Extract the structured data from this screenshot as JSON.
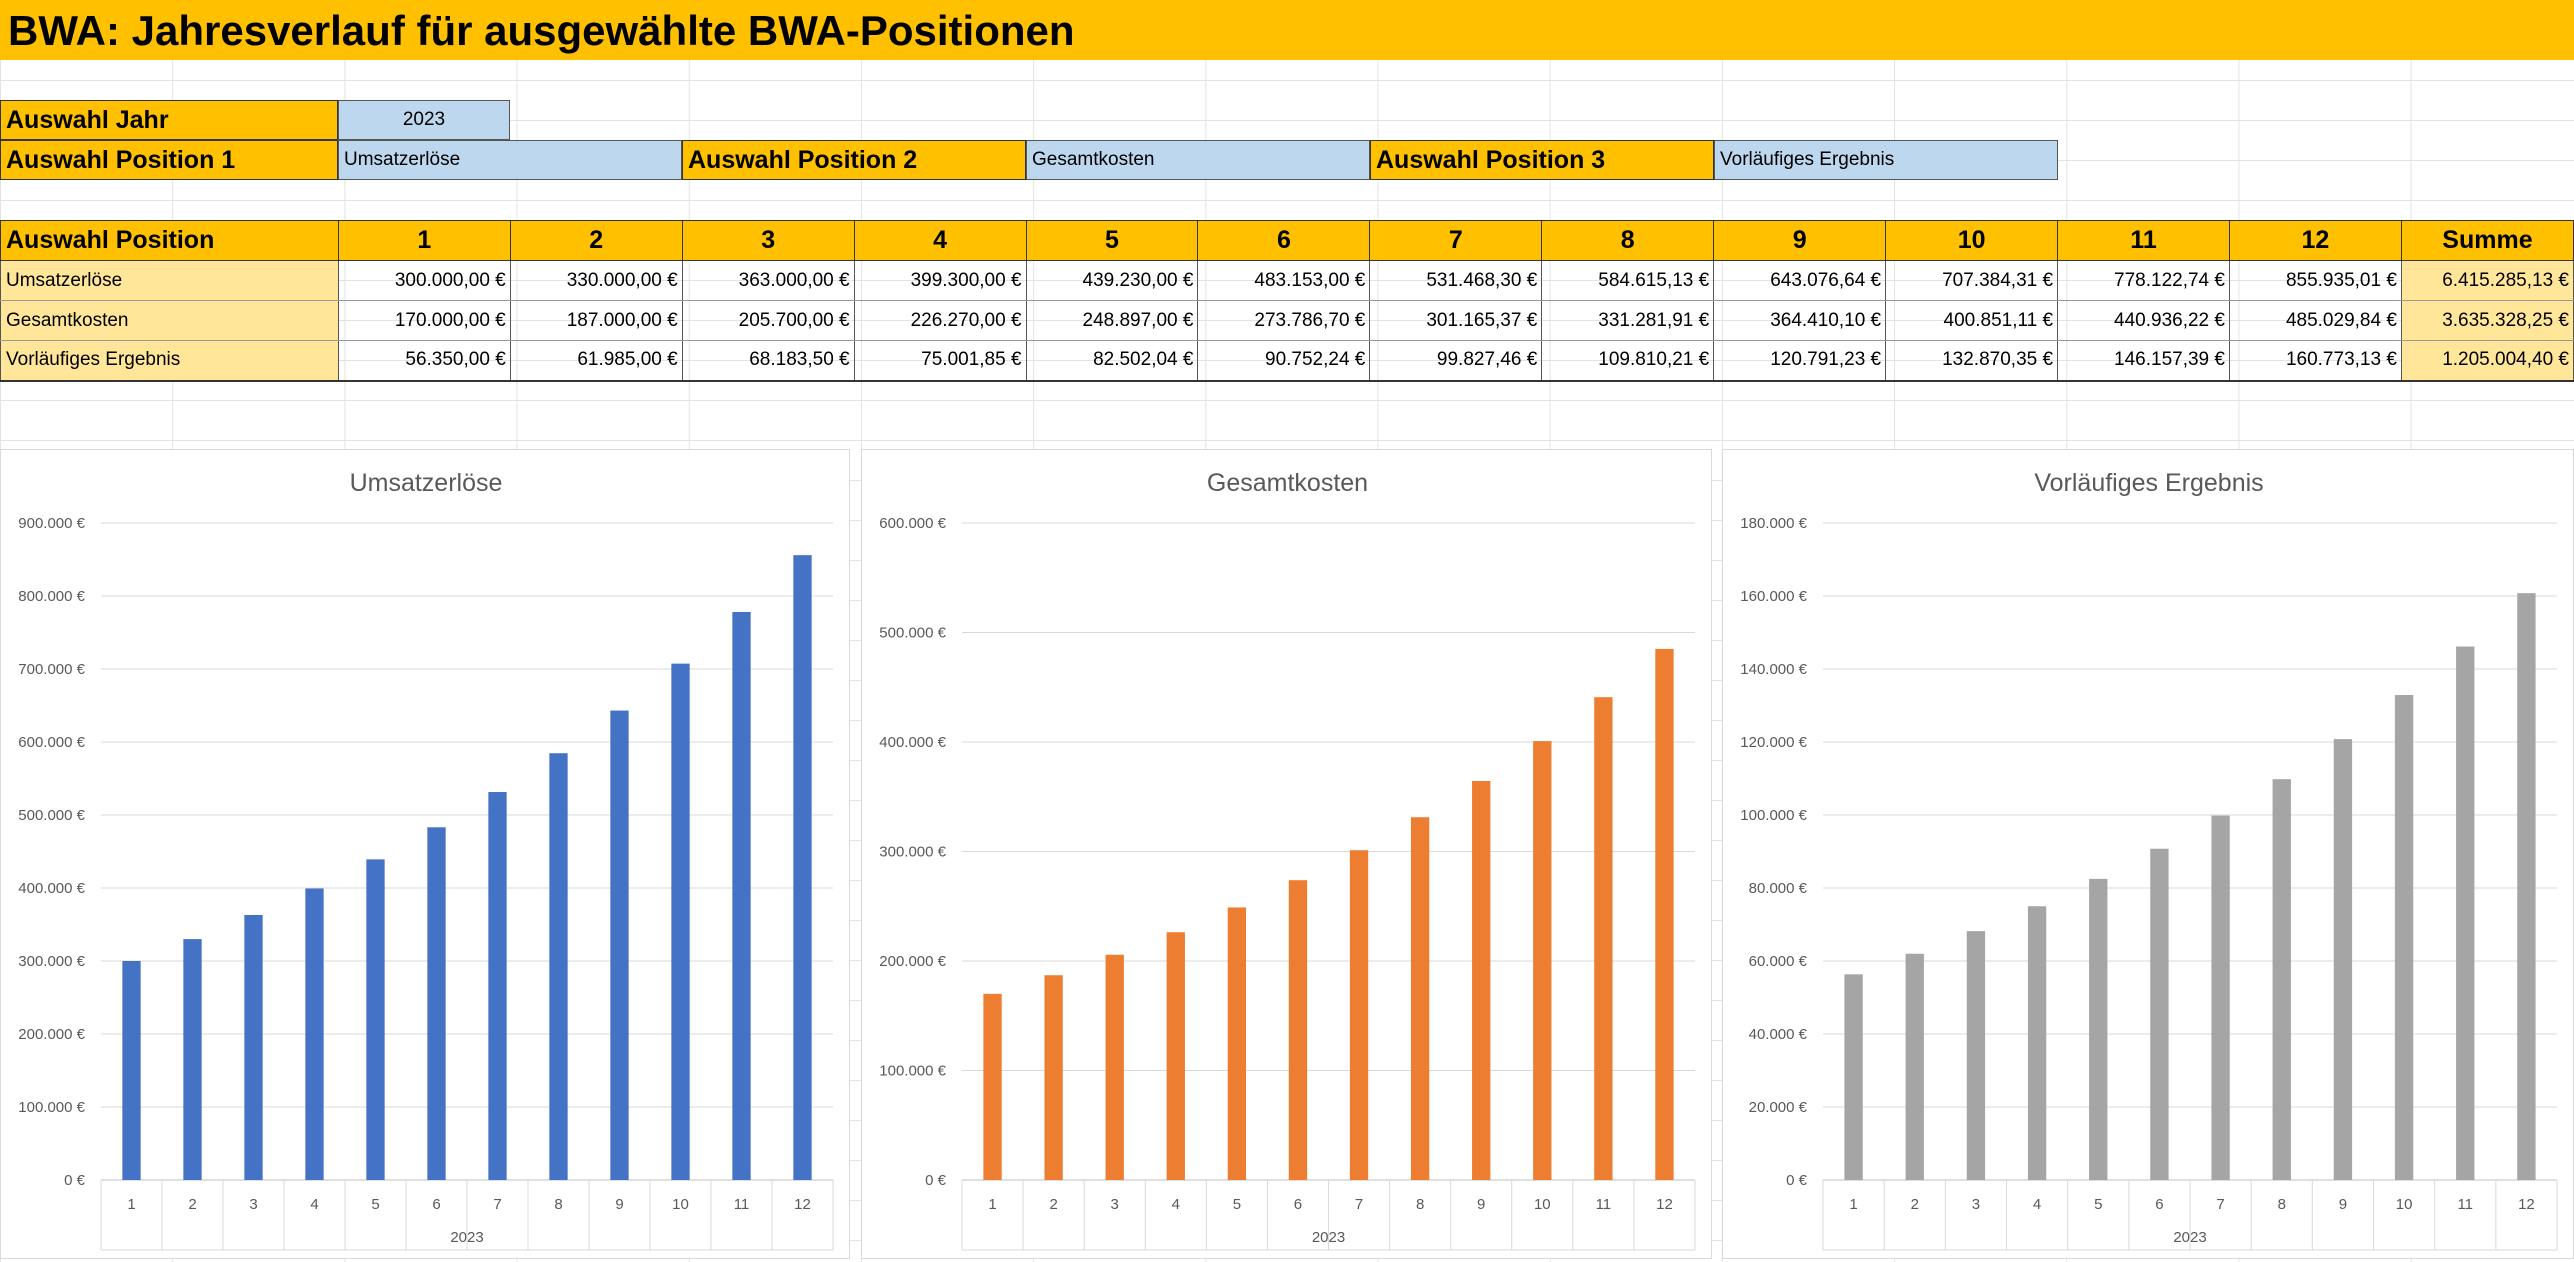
{
  "title": "BWA: Jahresverlauf für ausgewählte BWA-Positionen",
  "selection": {
    "year_label": "Auswahl Jahr",
    "year_value": "2023",
    "pos1_label": "Auswahl Position 1",
    "pos1_value": "Umsatzerlöse",
    "pos2_label": "Auswahl Position 2",
    "pos2_value": "Gesamtkosten",
    "pos3_label": "Auswahl Position 3",
    "pos3_value": "Vorläufiges Ergebnis"
  },
  "table": {
    "header_label": "Auswahl Position",
    "columns": [
      "1",
      "2",
      "3",
      "4",
      "5",
      "6",
      "7",
      "8",
      "9",
      "10",
      "11",
      "12"
    ],
    "sum_label": "Summe",
    "rows": [
      {
        "label": "Umsatzerlöse",
        "values": [
          "300.000,00 €",
          "330.000,00 €",
          "363.000,00 €",
          "399.300,00 €",
          "439.230,00 €",
          "483.153,00 €",
          "531.468,30 €",
          "584.615,13 €",
          "643.076,64 €",
          "707.384,31 €",
          "778.122,74 €",
          "855.935,01 €"
        ],
        "sum": "6.415.285,13 €"
      },
      {
        "label": "Gesamtkosten",
        "values": [
          "170.000,00 €",
          "187.000,00 €",
          "205.700,00 €",
          "226.270,00 €",
          "248.897,00 €",
          "273.786,70 €",
          "301.165,37 €",
          "331.281,91 €",
          "364.410,10 €",
          "400.851,11 €",
          "440.936,22 €",
          "485.029,84 €"
        ],
        "sum": "3.635.328,25 €"
      },
      {
        "label": "Vorläufiges Ergebnis",
        "values": [
          "56.350,00 €",
          "61.985,00 €",
          "68.183,50 €",
          "75.001,85 €",
          "82.502,04 €",
          "90.752,24 €",
          "99.827,46 €",
          "109.810,21 €",
          "120.791,23 €",
          "132.870,35 €",
          "146.157,39 €",
          "160.773,13 €"
        ],
        "sum": "1.205.004,40 €"
      }
    ]
  },
  "colors": {
    "header_orange": "#ffc000",
    "selection_blue": "#bdd7ee",
    "row_label_yellow": "#ffe699",
    "series1": "#4472c4",
    "series2": "#ed7d31",
    "series3": "#a5a5a5"
  },
  "chart_data": [
    {
      "type": "bar",
      "title": "Umsatzerlöse",
      "categories": [
        "1",
        "2",
        "3",
        "4",
        "5",
        "6",
        "7",
        "8",
        "9",
        "10",
        "11",
        "12"
      ],
      "xlabel": "2023",
      "values": [
        300000,
        330000,
        363000,
        399300,
        439230,
        483153,
        531468.3,
        584615.13,
        643076.64,
        707384.31,
        778122.74,
        855935.01
      ],
      "ylim": [
        0,
        900000
      ],
      "yticks": [
        0,
        100000,
        200000,
        300000,
        400000,
        500000,
        600000,
        700000,
        800000,
        900000
      ],
      "ytick_labels": [
        "0 €",
        "100.000 €",
        "200.000 €",
        "300.000 €",
        "400.000 €",
        "500.000 €",
        "600.000 €",
        "700.000 €",
        "800.000 €",
        "900.000 €"
      ],
      "color": "#4472c4",
      "grid": true
    },
    {
      "type": "bar",
      "title": "Gesamtkosten",
      "categories": [
        "1",
        "2",
        "3",
        "4",
        "5",
        "6",
        "7",
        "8",
        "9",
        "10",
        "11",
        "12"
      ],
      "xlabel": "2023",
      "values": [
        170000,
        187000,
        205700,
        226270,
        248897,
        273786.7,
        301165.37,
        331281.91,
        364410.1,
        400851.11,
        440936.22,
        485029.84
      ],
      "ylim": [
        0,
        600000
      ],
      "yticks": [
        0,
        100000,
        200000,
        300000,
        400000,
        500000,
        600000
      ],
      "ytick_labels": [
        "0 €",
        "100.000 €",
        "200.000 €",
        "300.000 €",
        "400.000 €",
        "500.000 €",
        "600.000 €"
      ],
      "color": "#ed7d31",
      "grid": true
    },
    {
      "type": "bar",
      "title": "Vorläufiges Ergebnis",
      "categories": [
        "1",
        "2",
        "3",
        "4",
        "5",
        "6",
        "7",
        "8",
        "9",
        "10",
        "11",
        "12"
      ],
      "xlabel": "2023",
      "values": [
        56350,
        61985,
        68183.5,
        75001.85,
        82502.04,
        90752.24,
        99827.46,
        109810.21,
        120791.23,
        132870.35,
        146157.39,
        160773.13
      ],
      "ylim": [
        0,
        180000
      ],
      "yticks": [
        0,
        20000,
        40000,
        60000,
        80000,
        100000,
        120000,
        140000,
        160000,
        180000
      ],
      "ytick_labels": [
        "0 €",
        "20.000 €",
        "40.000 €",
        "60.000 €",
        "80.000 €",
        "100.000 €",
        "120.000 €",
        "140.000 €",
        "160.000 €",
        "180.000 €"
      ],
      "color": "#a5a5a5",
      "grid": true
    }
  ]
}
